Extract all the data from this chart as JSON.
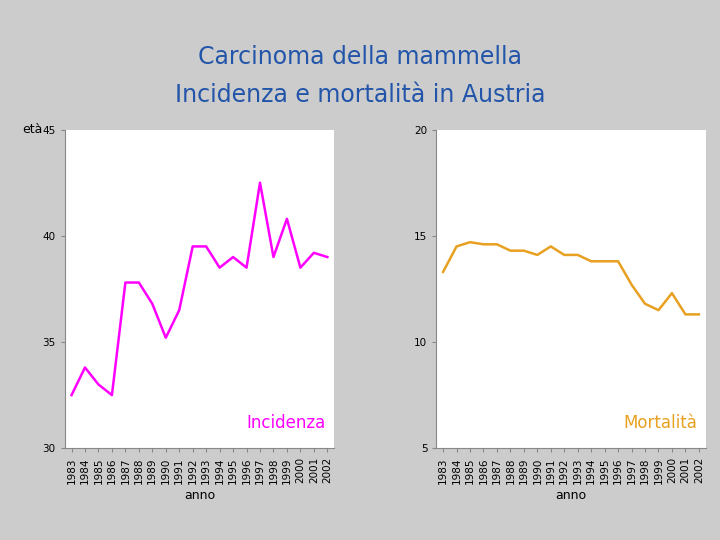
{
  "title_line1": "Carcinoma della mammella",
  "title_line2": "Incidenza e mortalità in Austria",
  "title_color": "#2255aa",
  "title_fontsize": 17,
  "background_color": "#cccccc",
  "plot_bg_color": "#ffffff",
  "header_bg_color": "#ffffff",
  "years": [
    1983,
    1984,
    1985,
    1986,
    1987,
    1988,
    1989,
    1990,
    1991,
    1992,
    1993,
    1994,
    1995,
    1996,
    1997,
    1998,
    1999,
    2000,
    2001,
    2002
  ],
  "incidenza_values": [
    32.5,
    33.8,
    33.0,
    32.5,
    37.8,
    37.8,
    36.8,
    35.2,
    36.5,
    39.5,
    39.5,
    38.5,
    39.0,
    38.5,
    42.5,
    39.0,
    40.8,
    38.5,
    39.2,
    39.0
  ],
  "mortalita_values": [
    13.3,
    14.5,
    14.7,
    14.6,
    14.6,
    14.3,
    14.3,
    14.1,
    14.5,
    14.1,
    14.1,
    13.8,
    13.8,
    13.8,
    12.7,
    11.8,
    11.5,
    12.3,
    11.3,
    11.3
  ],
  "incidenza_color": "#ff00ff",
  "mortalita_color": "#e8a020",
  "ylabel": "età",
  "xlabel": "anno",
  "incidenza_ylim": [
    30,
    45
  ],
  "incidenza_yticks": [
    30,
    35,
    40,
    45
  ],
  "mortalita_ylim": [
    5,
    20
  ],
  "mortalita_yticks": [
    5,
    10,
    15,
    20
  ],
  "label_incidenza": "Incidenza",
  "label_mortalita": "Mortalità",
  "label_fontsize": 12,
  "tick_fontsize": 7.5,
  "axis_label_fontsize": 9,
  "linewidth": 1.8
}
